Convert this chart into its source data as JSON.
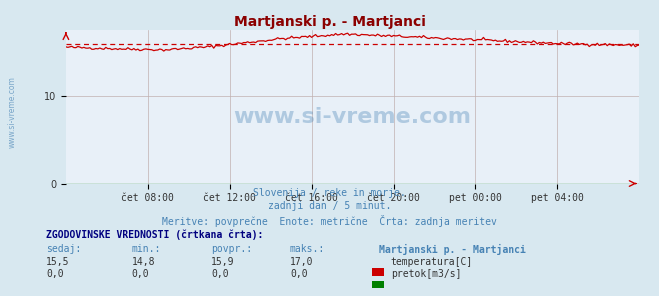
{
  "title": "Martjanski p. - Martjanci",
  "title_color": "#8b0000",
  "bg_color": "#d8e8f0",
  "plot_bg_color": "#e8f0f8",
  "grid_color": "#c0b0b0",
  "x_labels": [
    "čet 08:00",
    "čet 12:00",
    "čet 16:00",
    "čet 20:00",
    "pet 00:00",
    "pet 04:00"
  ],
  "x_ticks": [
    1,
    2,
    3,
    4,
    5,
    6
  ],
  "x_min": 0,
  "x_max": 7,
  "y_min": 0,
  "y_max": 17.5,
  "y_ticks": [
    0,
    10
  ],
  "watermark": "www.si-vreme.com",
  "subtitle1": "Slovenija / reke in morje.",
  "subtitle2": "zadnji dan / 5 minut.",
  "subtitle3": "Meritve: povprečne  Enote: metrične  Črta: zadnja meritev",
  "subtitle_color": "#4682b4",
  "sidebar_text": "www.si-vreme.com",
  "sidebar_color": "#4682b4",
  "temp_line_color": "#cc0000",
  "temp_dashed_color": "#cc0000",
  "flow_line_color": "#008000",
  "temp_avg": 15.9,
  "temp_min": 14.8,
  "temp_max": 17.0,
  "temp_current": 15.5,
  "flow_avg": 0.0,
  "flow_min": 0.0,
  "flow_max": 0.0,
  "flow_current": 0.0,
  "table_header": "ZGODOVINSKE VREDNOSTI (črtkana črta):",
  "table_cols": [
    "sedaj:",
    "min.:",
    "povpr.:",
    "maks.:"
  ],
  "table_station": "Martjanski p. - Martjanci",
  "legend1": "temperatura[C]",
  "legend2": "pretok[m3/s]",
  "legend_color1": "#cc0000",
  "legend_color2": "#008000"
}
